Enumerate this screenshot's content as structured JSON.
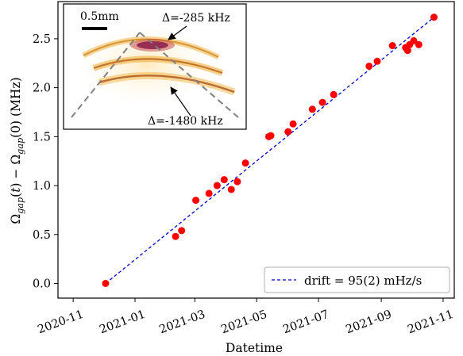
{
  "chart_data": {
    "type": "scatter",
    "xlabel": "Datetime",
    "ylabel_html": "Ω<tspan font-style='italic' font-size='0.72em' dy='4'>gap</tspan><tspan dy='-4'>(</tspan><tspan font-style='italic'>t</tspan>) − Ω<tspan font-style='italic' font-size='0.72em' dy='4'>gap</tspan><tspan dy='-4'>(0)  (MHz)</tspan>",
    "ylabel": "Ωgap(t) − Ωgap(0)  (MHz)",
    "x_ticks": [
      "2020-11",
      "2021-01",
      "2021-03",
      "2021-05",
      "2021-07",
      "2021-09",
      "2021-11"
    ],
    "x_tick_dates": [
      "2020-11-01",
      "2021-01-01",
      "2021-03-01",
      "2021-05-01",
      "2021-07-01",
      "2021-09-01",
      "2021-11-01"
    ],
    "xlim": [
      "2020-10-17",
      "2021-11-12"
    ],
    "ylim": [
      -0.15,
      2.88
    ],
    "y_ticks": [
      "0.0",
      "0.5",
      "1.0",
      "1.5",
      "2.0",
      "2.5"
    ],
    "y_tick_values": [
      0.0,
      0.5,
      1.0,
      1.5,
      2.0,
      2.5
    ],
    "points": [
      {
        "x": "2020-12-03",
        "y": 0.0
      },
      {
        "x": "2021-02-10",
        "y": 0.48
      },
      {
        "x": "2021-02-16",
        "y": 0.54
      },
      {
        "x": "2021-03-02",
        "y": 0.85
      },
      {
        "x": "2021-03-15",
        "y": 0.92
      },
      {
        "x": "2021-03-23",
        "y": 1.0
      },
      {
        "x": "2021-03-30",
        "y": 1.06
      },
      {
        "x": "2021-04-06",
        "y": 0.96
      },
      {
        "x": "2021-04-12",
        "y": 1.04
      },
      {
        "x": "2021-04-20",
        "y": 1.23
      },
      {
        "x": "2021-05-13",
        "y": 1.5
      },
      {
        "x": "2021-05-15",
        "y": 1.51
      },
      {
        "x": "2021-06-01",
        "y": 1.55
      },
      {
        "x": "2021-06-06",
        "y": 1.63
      },
      {
        "x": "2021-06-25",
        "y": 1.78
      },
      {
        "x": "2021-07-05",
        "y": 1.85
      },
      {
        "x": "2021-07-16",
        "y": 1.93
      },
      {
        "x": "2021-08-20",
        "y": 2.22
      },
      {
        "x": "2021-08-28",
        "y": 2.27
      },
      {
        "x": "2021-09-12",
        "y": 2.43
      },
      {
        "x": "2021-09-25",
        "y": 2.41
      },
      {
        "x": "2021-09-27",
        "y": 2.38
      },
      {
        "x": "2021-09-29",
        "y": 2.44
      },
      {
        "x": "2021-10-03",
        "y": 2.48
      },
      {
        "x": "2021-10-08",
        "y": 2.44
      },
      {
        "x": "2021-10-23",
        "y": 2.72
      }
    ],
    "fit_line": {
      "label": "drift = 95(2) mHz/s",
      "color": "#0000cc",
      "style": "dashed",
      "start": {
        "x": "2020-12-03",
        "y": 0.0
      },
      "end": {
        "x": "2021-10-23",
        "y": 2.72
      }
    },
    "point_color": "#ff0000",
    "legend_position": "lower-right",
    "inset": {
      "scale_label": "0.5mm",
      "annotation_top": "Δ=-285 kHz",
      "annotation_bottom": "Δ=-1480 kHz"
    }
  }
}
